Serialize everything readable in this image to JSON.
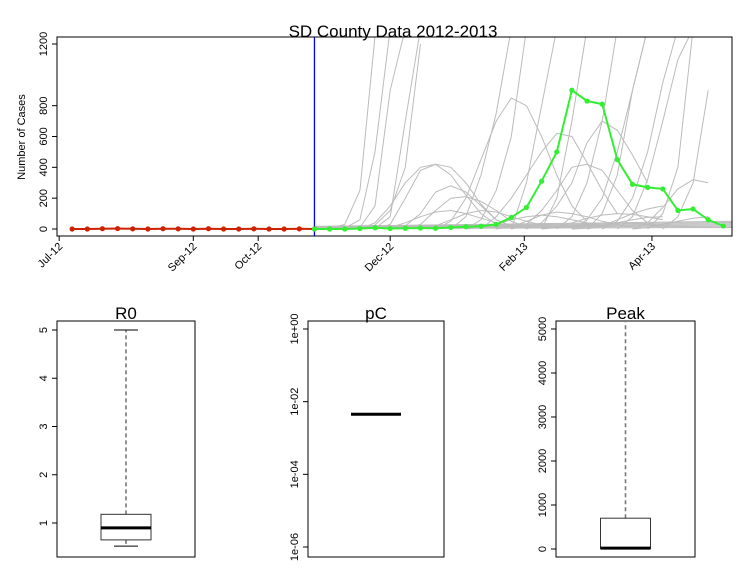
{
  "chart_data": [
    {
      "type": "line",
      "title": "SD County Data 2012-2013",
      "xlabel": "",
      "ylabel": "Number of Cases",
      "x_ticks": [
        "Jul-12",
        "Sep-12",
        "Oct-12",
        "Dec-12",
        "Feb-13",
        "Apr-13"
      ],
      "y_ticks": [
        "0",
        "200",
        "400",
        "600",
        "800",
        "1200"
      ],
      "ylim": [
        0,
        1200
      ],
      "split_date": "2012-10-27",
      "series": [
        {
          "role": "observed",
          "color": "#cc2200",
          "x": [
            "2012-07-07",
            "2012-07-14",
            "2012-07-21",
            "2012-07-28",
            "2012-08-04",
            "2012-08-11",
            "2012-08-18",
            "2012-08-25",
            "2012-09-01",
            "2012-09-08",
            "2012-09-15",
            "2012-09-22",
            "2012-09-29",
            "2012-10-06",
            "2012-10-13",
            "2012-10-20",
            "2012-10-27"
          ],
          "values": [
            0,
            0,
            2,
            3,
            1,
            0,
            2,
            1,
            0,
            2,
            0,
            0,
            1,
            0,
            0,
            1,
            0
          ]
        },
        {
          "role": "fitted",
          "color": "#33ee33",
          "x": [
            "2012-10-27",
            "2012-11-03",
            "2012-11-10",
            "2012-11-17",
            "2012-11-24",
            "2012-12-01",
            "2012-12-08",
            "2012-12-15",
            "2012-12-22",
            "2012-12-29",
            "2013-01-05",
            "2013-01-12",
            "2013-01-19",
            "2013-01-26",
            "2013-02-02",
            "2013-02-09",
            "2013-02-16",
            "2013-02-23",
            "2013-03-02",
            "2013-03-09",
            "2013-03-16",
            "2013-03-23",
            "2013-03-30",
            "2013-04-06",
            "2013-04-13",
            "2013-04-20",
            "2013-04-27",
            "2013-05-04"
          ],
          "values": [
            0,
            0,
            0,
            3,
            8,
            3,
            5,
            6,
            5,
            10,
            15,
            18,
            30,
            75,
            140,
            310,
            500,
            900,
            830,
            810,
            450,
            290,
            270,
            260,
            120,
            130,
            60,
            20
          ]
        }
      ],
      "simulation_color": "#bbbbbb",
      "legend": "none"
    },
    {
      "type": "box",
      "title": "R0",
      "y_ticks": [
        "1",
        "2",
        "3",
        "4",
        "5"
      ],
      "ylim": [
        0.4,
        5.2
      ],
      "box": {
        "min": 0.52,
        "q1": 0.65,
        "median": 0.9,
        "q3": 1.18,
        "max": 5.0
      }
    },
    {
      "type": "box",
      "title": "pC",
      "scale": "log",
      "y_ticks": [
        "1e-06",
        "1e-04",
        "1e-02",
        "1e+00"
      ],
      "ylim": [
        1e-06,
        1
      ],
      "box": {
        "min": 0.0045,
        "q1": 0.0045,
        "median": 0.0045,
        "q3": 0.0045,
        "max": 0.0045
      }
    },
    {
      "type": "box",
      "title": "Peak",
      "y_ticks": [
        "0",
        "1000",
        "2000",
        "3000",
        "4000",
        "5000"
      ],
      "ylim": [
        -200,
        5200
      ],
      "box": {
        "min": 0,
        "q1": 10,
        "median": 20,
        "q3": 700,
        "max": 5200
      }
    }
  ]
}
